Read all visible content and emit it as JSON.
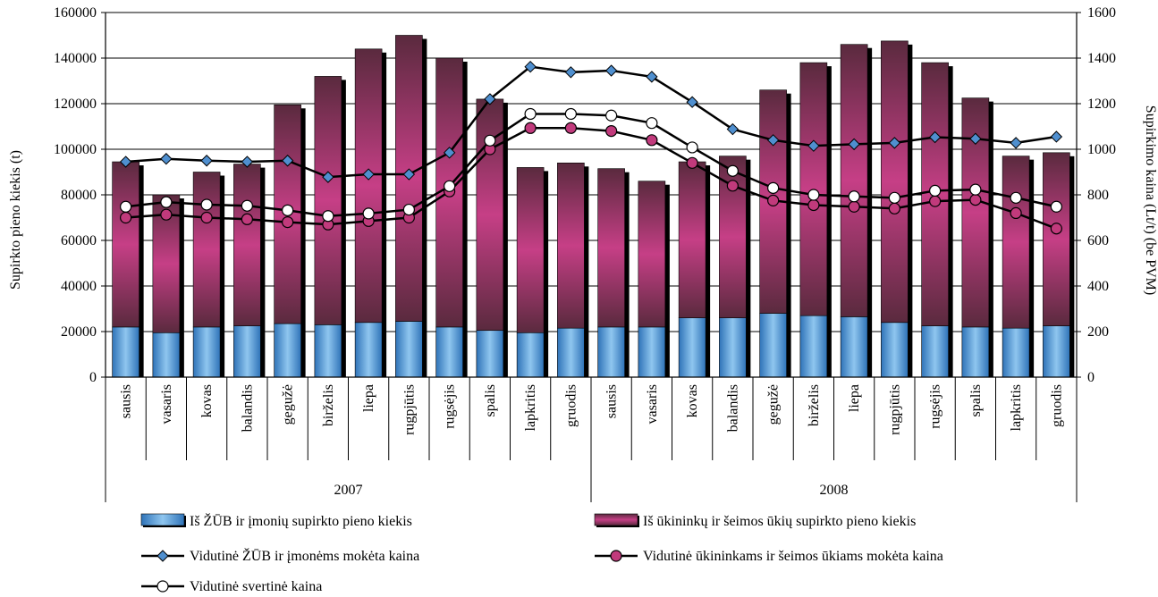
{
  "chart_data": {
    "type": "bar",
    "stacked": true,
    "ylabel_left": "Supirkto pieno kiekis (t)",
    "ylabel_right": "Supirkimo kaina (Lt/t) (be PVM)",
    "ylim_left": [
      0,
      160000
    ],
    "ylim_right": [
      0,
      1600
    ],
    "yticks_left": [
      "0",
      "20000",
      "40000",
      "60000",
      "80000",
      "100000",
      "120000",
      "140000",
      "160000"
    ],
    "yticks_right": [
      "0",
      "200",
      "400",
      "600",
      "800",
      "1000",
      "1200",
      "1400",
      "1600"
    ],
    "grid": true,
    "legend_position": "bottom",
    "years": [
      {
        "label": "2007",
        "span": [
          0,
          11
        ]
      },
      {
        "label": "2008",
        "span": [
          12,
          23
        ]
      }
    ],
    "categories": [
      "sausis",
      "vasaris",
      "kovas",
      "balandis",
      "gegužė",
      "birželis",
      "liepa",
      "rugpjūtis",
      "rugsėjis",
      "spalis",
      "lapkritis",
      "gruodis",
      "sausis",
      "vasaris",
      "kovas",
      "balandis",
      "gegužė",
      "birželis",
      "liepa",
      "rugpjūtis",
      "rugsėjis",
      "spalis",
      "lapkritis",
      "gruodis"
    ],
    "bar_series": [
      {
        "name": "Iš ŽŪB ir įmonių supirkto pieno kiekis",
        "axis": "left",
        "values": [
          22000,
          19500,
          22000,
          22500,
          23500,
          23000,
          24000,
          24500,
          22000,
          20500,
          19500,
          21500,
          22000,
          22000,
          26000,
          26000,
          28000,
          27000,
          26500,
          24000,
          22500,
          22000,
          21500,
          22500
        ]
      },
      {
        "name": "Iš ūkininkų ir šeimos ūkių supirkto pieno kiekis",
        "axis": "left",
        "values": [
          72500,
          60500,
          68000,
          71000,
          96000,
          109000,
          120000,
          125500,
          118000,
          101500,
          72500,
          72500,
          69500,
          64000,
          68500,
          71000,
          98000,
          111000,
          119500,
          123500,
          115500,
          100500,
          75500,
          76000
        ]
      }
    ],
    "line_series": [
      {
        "name": "Vidutinė ŽŪB ir įmonėms mokėta kaina",
        "axis": "right",
        "marker": "diamond",
        "values": [
          945,
          958,
          950,
          945,
          950,
          878,
          890,
          890,
          985,
          1220,
          1362,
          1338,
          1345,
          1318,
          1207,
          1088,
          1040,
          1015,
          1022,
          1028,
          1053,
          1046,
          1028,
          1055
        ]
      },
      {
        "name": "Vidutinė ūkininkams ir šeimos ūkiams mokėta kaina",
        "axis": "right",
        "marker": "circle-filled",
        "values": [
          700,
          713,
          700,
          693,
          680,
          670,
          685,
          700,
          815,
          1000,
          1093,
          1093,
          1080,
          1040,
          940,
          840,
          775,
          755,
          748,
          740,
          772,
          778,
          720,
          652
        ]
      },
      {
        "name": "Vidutinė svertinė kaina",
        "axis": "right",
        "marker": "circle-open",
        "values": [
          748,
          768,
          757,
          752,
          732,
          707,
          718,
          735,
          838,
          1038,
          1155,
          1155,
          1148,
          1115,
          1008,
          905,
          830,
          800,
          793,
          787,
          818,
          823,
          787,
          748
        ]
      }
    ],
    "colors": {
      "bar_bottom_light": "#8fc6ef",
      "bar_bottom_dark": "#2f73b8",
      "bar_top_light": "#c63f86",
      "bar_top_dark": "#5a2a3e",
      "shadow": "#000000",
      "line": "#000000",
      "diamond_fill": "#4f8fcf",
      "circle_filled_fill": "#c13a7c",
      "circle_open_fill": "#ffffff"
    }
  }
}
